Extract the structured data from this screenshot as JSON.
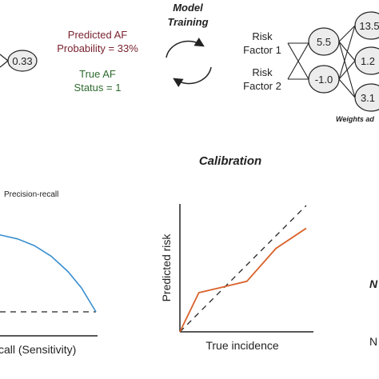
{
  "top": {
    "left_node_value": "0.33",
    "predicted_af_line1": "Predicted AF",
    "predicted_af_line2": "Probability = 33%",
    "true_af_line1": "True AF",
    "true_af_line2": "Status = 1",
    "model_training_line1": "Model",
    "model_training_line2": "Training",
    "risk_factor_1_line1": "Risk",
    "risk_factor_1_line2": "Factor 1",
    "risk_factor_2_line1": "Risk",
    "risk_factor_2_line2": "Factor 2",
    "input_node_1": "5.5",
    "input_node_2": "-1.0",
    "output_node_1": "13.5",
    "output_node_2": "1.2",
    "output_node_3": "3.1",
    "weights_caption": "Weights ad"
  },
  "precision_recall": {
    "label": "Precision-recall",
    "xlabel": "call (Sensitivity)"
  },
  "calibration": {
    "title": "Calibration",
    "xlabel": "True incidence",
    "ylabel": "Predicted risk"
  },
  "right_edge": {
    "text1": "N",
    "text2": "N"
  },
  "colors": {
    "predicted": "#7a2330",
    "true_status": "#2e6b2e",
    "pr_curve": "#3a8fd0",
    "calibration_curve": "#d9622b",
    "ink": "#222222"
  },
  "chart_data": [
    {
      "type": "line",
      "title": "",
      "label": "Precision-recall",
      "xlabel": "call (Sensitivity)",
      "ylabel": "",
      "xlim": [
        0,
        1
      ],
      "ylim": [
        0,
        1
      ],
      "series": [
        {
          "x": [
            0.0,
            0.15,
            0.3,
            0.45,
            0.6,
            0.75,
            0.87,
            1.0
          ],
          "y": [
            0.82,
            0.8,
            0.76,
            0.69,
            0.58,
            0.42,
            0.25,
            0.0
          ]
        }
      ],
      "baseline_y": 0.0
    },
    {
      "type": "line",
      "title": "Calibration",
      "xlabel": "True incidence",
      "ylabel": "Predicted risk",
      "xlim": [
        0,
        1
      ],
      "ylim": [
        0,
        1
      ],
      "series": [
        {
          "x": [
            0.0,
            0.15,
            0.32,
            0.53,
            0.76,
            1.0
          ],
          "y": [
            0.0,
            0.31,
            0.35,
            0.4,
            0.66,
            0.82
          ]
        }
      ],
      "reference_line": "identity"
    }
  ]
}
